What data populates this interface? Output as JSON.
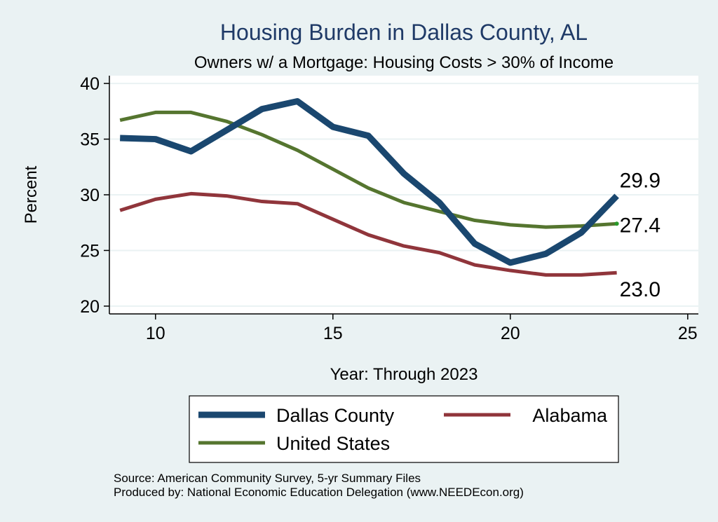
{
  "chart_data": {
    "type": "line",
    "title": "Housing Burden in Dallas County, AL",
    "subtitle": "Owners w/ a Mortgage: Housing Costs > 30% of Income",
    "xlabel": "Year: Through 2023",
    "ylabel": "Percent",
    "xlim": [
      8.7,
      25.3
    ],
    "ylim": [
      19.3,
      40.7
    ],
    "xticks": [
      10,
      15,
      20,
      25
    ],
    "yticks": [
      20,
      25,
      30,
      35,
      40
    ],
    "grid": true,
    "x": [
      9,
      10,
      11,
      12,
      13,
      14,
      15,
      16,
      17,
      18,
      19,
      20,
      21,
      22,
      23
    ],
    "series": [
      {
        "name": "Dallas County",
        "color": "#1a476f",
        "values": [
          35.1,
          35.0,
          33.9,
          35.8,
          37.7,
          38.4,
          36.1,
          35.3,
          31.9,
          29.3,
          25.6,
          23.9,
          24.7,
          26.6,
          29.9
        ],
        "end_label": "29.9"
      },
      {
        "name": "Alabama",
        "color": "#90353b",
        "values": [
          28.6,
          29.6,
          30.1,
          29.9,
          29.4,
          29.2,
          27.8,
          26.4,
          25.4,
          24.8,
          23.7,
          23.2,
          22.8,
          22.8,
          23.0
        ],
        "end_label": "23.0"
      },
      {
        "name": "United States",
        "color": "#55752f",
        "values": [
          36.7,
          37.4,
          37.4,
          36.6,
          35.4,
          34.0,
          32.3,
          30.6,
          29.3,
          28.5,
          27.7,
          27.3,
          27.1,
          27.2,
          27.4
        ],
        "end_label": "27.4"
      }
    ],
    "legend": {
      "placement": "bottom",
      "entries": [
        "Dallas County",
        "Alabama",
        "United States"
      ]
    },
    "source": "Source: American Community Survey, 5-yr Summary Files",
    "produced_by": "Produced by: National Economic Education Delegation (www.NEEDEcon.org)"
  }
}
